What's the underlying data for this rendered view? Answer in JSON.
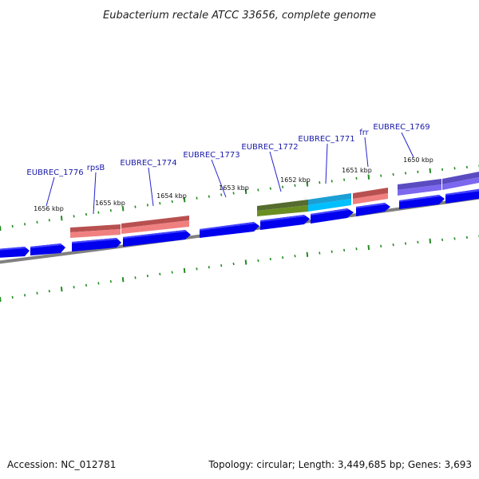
{
  "title": "Eubacterium rectale ATCC 33656, complete genome",
  "accession": "Accession: NC_012781",
  "summary": "Topology: circular; Length: 3,449,685 bp; Genes: 3,693",
  "colors": {
    "background": "#ffffff",
    "backbone": "#808080",
    "forward_gene": "#0000ee",
    "tick": "#228b22",
    "label": "#1a1aaa",
    "callout_line": "#2222cc"
  },
  "kbp_marks": [
    "1656 kbp",
    "1655 kbp",
    "1654 kbp",
    "1653 kbp",
    "1652 kbp",
    "1651 kbp",
    "1650 kbp"
  ],
  "gene_labels": [
    "EUBREC_1776",
    "rpsB",
    "EUBREC_1774",
    "EUBREC_1773",
    "EUBREC_1772",
    "EUBREC_1771",
    "frr",
    "EUBREC_1769"
  ],
  "feature_blocks": [
    {
      "color": "#f08080"
    },
    {
      "color": "#f08080"
    },
    {
      "color": "#6b8e23"
    },
    {
      "color": "#00bfff"
    },
    {
      "color": "#f08080"
    },
    {
      "color": "#7b68ee"
    },
    {
      "color": "#7b68ee"
    }
  ]
}
